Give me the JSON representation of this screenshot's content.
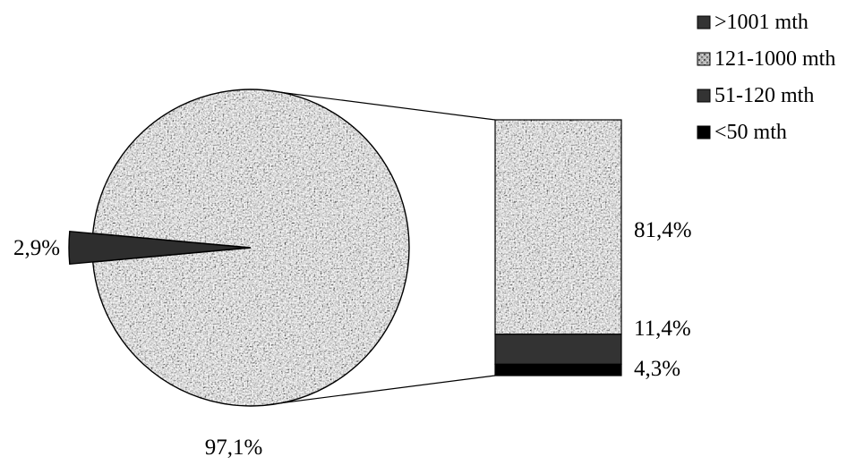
{
  "chart_data": {
    "type": "bar-of-pie",
    "title": "",
    "pie": {
      "slices": [
        {
          "ref": ">1001 mth",
          "value": 2.9,
          "label": "2,9%",
          "color": "#2e2e2e",
          "pattern": "solid"
        },
        {
          "ref": "other",
          "value": 97.1,
          "label": "97,1%",
          "color": "#8a8a8a",
          "pattern": "granite"
        }
      ]
    },
    "bar": {
      "segments": [
        {
          "ref": "121-1000 mth",
          "value": 81.4,
          "label": "81,4%",
          "color": "#8a8a8a",
          "pattern": "granite"
        },
        {
          "ref": "51-120 mth",
          "value": 11.4,
          "label": "11,4%",
          "color": "#333333",
          "pattern": "solid"
        },
        {
          "ref": "<50 mth",
          "value": 4.3,
          "label": "4,3%",
          "color": "#000000",
          "pattern": "solid"
        }
      ]
    },
    "legend": {
      "position": "top-right",
      "entries": [
        {
          "name": ">1001 mth",
          "color": "#333333",
          "pattern": "solid"
        },
        {
          "name": "121-1000 mth",
          "color": "#a0a0a0",
          "pattern": "granite"
        },
        {
          "name": "51-120 mth",
          "color": "#333333",
          "pattern": "solid"
        },
        {
          "name": "<50 mth",
          "color": "#000000",
          "pattern": "solid"
        }
      ]
    }
  }
}
